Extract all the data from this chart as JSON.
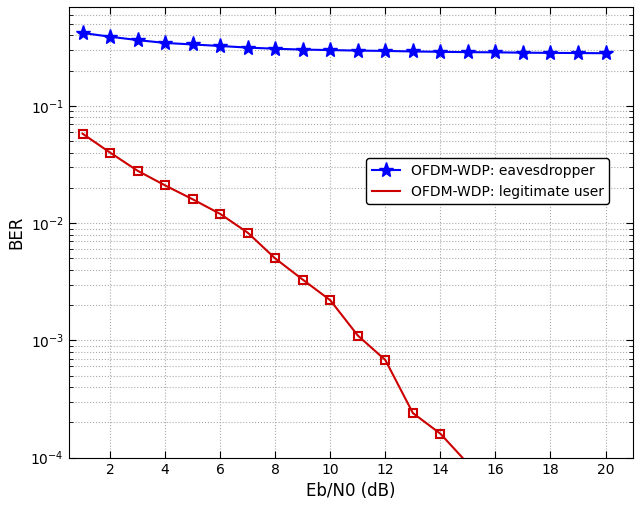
{
  "title": "",
  "xlabel": "Eb/N0 (dB)",
  "ylabel": "BER",
  "xlim": [
    0.5,
    21
  ],
  "ylim": [
    0.0001,
    0.7
  ],
  "xticks": [
    2,
    4,
    6,
    8,
    10,
    12,
    14,
    16,
    18,
    20
  ],
  "background_color": "#ffffff",
  "grid_color": "#aaaaaa",
  "eavesdropper": {
    "x": [
      1,
      2,
      3,
      4,
      5,
      6,
      7,
      8,
      9,
      10,
      11,
      12,
      13,
      14,
      15,
      16,
      17,
      18,
      19,
      20
    ],
    "y": [
      0.42,
      0.39,
      0.365,
      0.345,
      0.335,
      0.325,
      0.315,
      0.308,
      0.303,
      0.3,
      0.297,
      0.295,
      0.292,
      0.29,
      0.288,
      0.287,
      0.285,
      0.284,
      0.283,
      0.282
    ],
    "color": "#0000ff",
    "label": "OFDM-WDP: eavesdropper",
    "marker": "*",
    "linewidth": 1.5,
    "markersize": 11
  },
  "legitimate": {
    "x": [
      1,
      2,
      3,
      4,
      5,
      6,
      7,
      8,
      9,
      10,
      11,
      12,
      13,
      14,
      14.8
    ],
    "y": [
      0.058,
      0.04,
      0.028,
      0.021,
      0.016,
      0.012,
      0.0083,
      0.005,
      0.0033,
      0.0022,
      0.0011,
      0.00068,
      0.00024,
      0.00016,
      0.0001
    ],
    "color": "#cc0000",
    "label": "OFDM-WDP: legitimate user",
    "marker": "s",
    "linewidth": 1.5,
    "markersize": 6
  }
}
